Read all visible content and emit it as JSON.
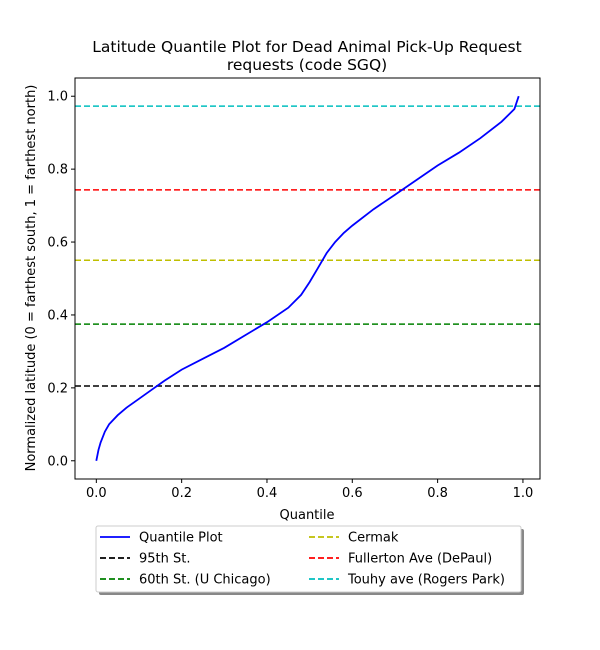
{
  "chart_data": {
    "type": "line",
    "title_lines": [
      "Latitude Quantile Plot for Dead Animal Pick-Up Request",
      "requests (code SGQ)"
    ],
    "xlabel": "Quantile",
    "ylabel": "Normalized latitude (0 = farthest south, 1 = farthest north)",
    "xlim": [
      -0.05,
      1.04
    ],
    "ylim": [
      -0.05,
      1.05
    ],
    "xticks": [
      0.0,
      0.2,
      0.4,
      0.6,
      0.8,
      1.0
    ],
    "xtick_labels": [
      "0.0",
      "0.2",
      "0.4",
      "0.6",
      "0.8",
      "1.0"
    ],
    "yticks": [
      0.0,
      0.2,
      0.4,
      0.6,
      0.8,
      1.0
    ],
    "ytick_labels": [
      "0.0",
      "0.2",
      "0.4",
      "0.6",
      "0.8",
      "1.0"
    ],
    "grid": false,
    "legend_placement": "below the plot, two columns",
    "series": [
      {
        "name": "Quantile Plot",
        "color": "#0000ff",
        "style": "solid",
        "x": [
          0.0,
          0.005,
          0.01,
          0.02,
          0.03,
          0.05,
          0.07,
          0.1,
          0.13,
          0.16,
          0.2,
          0.25,
          0.3,
          0.35,
          0.4,
          0.45,
          0.48,
          0.5,
          0.52,
          0.54,
          0.56,
          0.58,
          0.6,
          0.65,
          0.7,
          0.75,
          0.8,
          0.85,
          0.9,
          0.95,
          0.98,
          0.99
        ],
        "y": [
          0.0,
          0.03,
          0.05,
          0.08,
          0.1,
          0.125,
          0.145,
          0.17,
          0.195,
          0.22,
          0.25,
          0.28,
          0.31,
          0.345,
          0.38,
          0.42,
          0.455,
          0.49,
          0.53,
          0.57,
          0.6,
          0.625,
          0.645,
          0.69,
          0.73,
          0.77,
          0.81,
          0.845,
          0.885,
          0.93,
          0.965,
          1.0
        ]
      }
    ],
    "reference_lines": [
      {
        "name": "95th St.",
        "y": 0.205,
        "color": "#000000",
        "style": "dashed"
      },
      {
        "name": "60th St. (U Chicago)",
        "y": 0.375,
        "color": "#008000",
        "style": "dashed"
      },
      {
        "name": "Cermak",
        "y": 0.55,
        "color": "#bfbf00",
        "style": "dashed"
      },
      {
        "name": "Fullerton Ave (DePaul)",
        "y": 0.743,
        "color": "#ff0000",
        "style": "dashed"
      },
      {
        "name": "Touhy ave (Rogers Park)",
        "y": 0.973,
        "color": "#00bfbf",
        "style": "dashed"
      }
    ],
    "legend": [
      {
        "label": "Quantile Plot",
        "color": "#0000ff",
        "style": "solid"
      },
      {
        "label": "95th St.",
        "color": "#000000",
        "style": "dashed"
      },
      {
        "label": "60th St. (U Chicago)",
        "color": "#008000",
        "style": "dashed"
      },
      {
        "label": "Cermak",
        "color": "#bfbf00",
        "style": "dashed"
      },
      {
        "label": "Fullerton Ave (DePaul)",
        "color": "#ff0000",
        "style": "dashed"
      },
      {
        "label": "Touhy ave (Rogers Park)",
        "color": "#00bfbf",
        "style": "dashed"
      }
    ]
  }
}
